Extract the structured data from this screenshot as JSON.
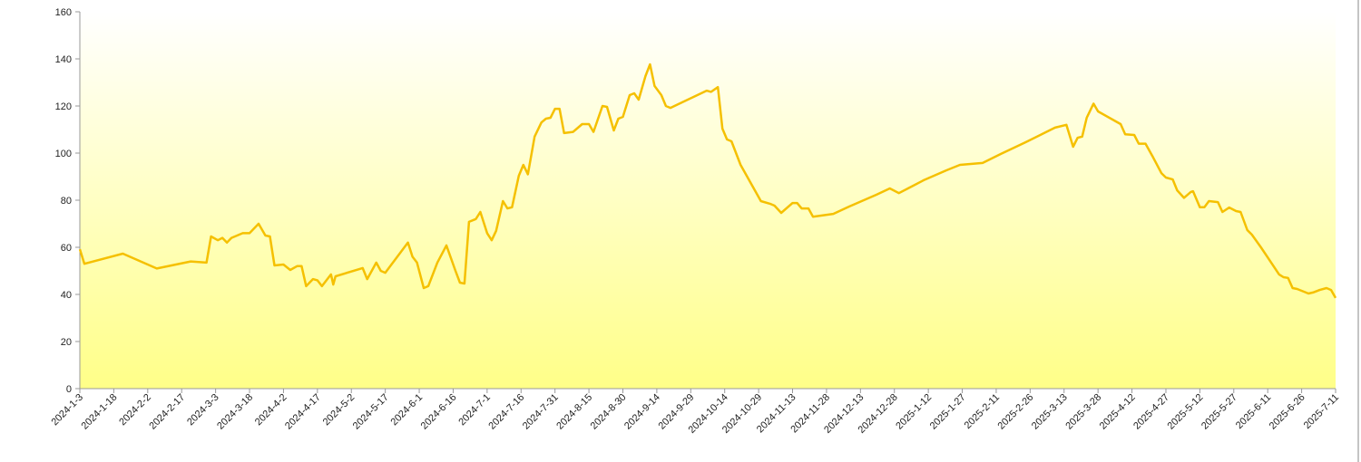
{
  "chart_data": {
    "type": "line",
    "color": "#f5c000",
    "x": [
      "2024-1-3",
      "2024-1-5",
      "2024-1-22",
      "2024-2-6",
      "2024-2-21",
      "2024-2-28",
      "2024-3-1",
      "2024-3-4",
      "2024-3-6",
      "2024-3-8",
      "2024-3-10",
      "2024-3-15",
      "2024-3-18",
      "2024-3-22",
      "2024-3-25",
      "2024-3-27",
      "2024-3-29",
      "2024-4-2",
      "2024-4-5",
      "2024-4-8",
      "2024-4-10",
      "2024-4-12",
      "2024-4-15",
      "2024-4-17",
      "2024-4-19",
      "2024-4-23",
      "2024-4-24",
      "2024-4-25",
      "2024-5-7",
      "2024-5-9",
      "2024-5-13",
      "2024-5-15",
      "2024-5-17",
      "2024-5-27",
      "2024-5-29",
      "2024-5-31",
      "2024-6-3",
      "2024-6-5",
      "2024-6-9",
      "2024-6-13",
      "2024-6-17",
      "2024-6-19",
      "2024-6-21",
      "2024-6-23",
      "2024-6-26",
      "2024-6-28",
      "2024-7-1",
      "2024-7-3",
      "2024-7-5",
      "2024-7-8",
      "2024-7-10",
      "2024-7-12",
      "2024-7-15",
      "2024-7-17",
      "2024-7-19",
      "2024-7-22",
      "2024-7-25",
      "2024-7-27",
      "2024-7-29",
      "2024-7-31",
      "2024-8-2",
      "2024-8-4",
      "2024-8-8",
      "2024-8-12",
      "2024-8-15",
      "2024-8-17",
      "2024-8-21",
      "2024-8-23",
      "2024-8-26",
      "2024-8-28",
      "2024-8-30",
      "2024-9-2",
      "2024-9-4",
      "2024-9-6",
      "2024-9-9",
      "2024-9-11",
      "2024-9-13",
      "2024-9-16",
      "2024-9-18",
      "2024-9-20",
      "2024-10-6",
      "2024-10-8",
      "2024-10-11",
      "2024-10-13",
      "2024-10-15",
      "2024-10-17",
      "2024-10-21",
      "2024-10-30",
      "2024-11-3",
      "2024-11-5",
      "2024-11-8",
      "2024-11-13",
      "2024-11-15",
      "2024-11-17",
      "2024-11-20",
      "2024-11-22",
      "2024-12-1",
      "2024-12-8",
      "2024-12-20",
      "2024-12-26",
      "2024-12-30",
      "2025-1-3",
      "2025-1-10",
      "2025-1-20",
      "2025-1-26",
      "2025-2-5",
      "2025-2-13",
      "2025-2-24",
      "2025-3-9",
      "2025-3-14",
      "2025-3-17",
      "2025-3-19",
      "2025-3-21",
      "2025-3-23",
      "2025-3-26",
      "2025-3-28",
      "2025-4-7",
      "2025-4-9",
      "2025-4-13",
      "2025-4-15",
      "2025-4-18",
      "2025-4-21",
      "2025-4-25",
      "2025-4-27",
      "2025-4-30",
      "2025-5-2",
      "2025-5-5",
      "2025-5-8",
      "2025-5-9",
      "2025-5-12",
      "2025-5-14",
      "2025-5-16",
      "2025-5-20",
      "2025-5-22",
      "2025-5-25",
      "2025-5-28",
      "2025-5-30",
      "2025-6-2",
      "2025-6-4",
      "2025-6-8",
      "2025-6-16",
      "2025-6-18",
      "2025-6-20",
      "2025-6-22",
      "2025-6-24",
      "2025-6-29",
      "2025-7-1",
      "2025-7-4",
      "2025-7-7",
      "2025-7-9",
      "2025-7-11"
    ],
    "values": [
      59.2,
      53,
      57.3,
      51,
      54,
      53.5,
      64.6,
      63,
      64,
      62,
      64,
      66,
      66,
      70,
      65,
      64.6,
      52.3,
      52.7,
      50.4,
      52,
      52,
      43.5,
      46.5,
      46,
      43.5,
      48.5,
      44.2,
      47.7,
      51.2,
      46.5,
      53.5,
      50,
      49.2,
      62,
      56,
      53.5,
      42.7,
      43.5,
      53.5,
      60.8,
      50,
      45,
      44.6,
      70.8,
      72,
      75,
      66,
      63,
      67,
      79.6,
      76.5,
      77,
      90.4,
      95,
      91,
      107,
      113,
      114.6,
      115,
      118.8,
      118.8,
      108.5,
      109,
      112.3,
      112.3,
      109,
      120,
      119.6,
      109.6,
      114.6,
      115.4,
      124.6,
      125.4,
      122.7,
      132.7,
      137.7,
      128.5,
      124.6,
      120,
      119.2,
      126.5,
      126,
      128,
      110.4,
      105.8,
      105,
      95,
      79.6,
      78.5,
      77.7,
      74.6,
      78.8,
      78.8,
      76.5,
      76.5,
      73,
      74.2,
      77.3,
      82.3,
      85,
      83,
      85,
      88.5,
      92.7,
      95,
      95.8,
      99.6,
      104.6,
      110.8,
      112,
      102.7,
      106.5,
      107,
      115,
      121,
      117.7,
      112.3,
      108,
      107.7,
      104,
      104,
      98.8,
      91.5,
      89.6,
      88.8,
      84.2,
      81,
      83.5,
      83.8,
      77,
      77,
      79.6,
      79.2,
      75,
      76.9,
      75.4,
      75,
      67.3,
      65.4,
      60,
      48.5,
      47.3,
      47,
      42.7,
      42.3,
      40.4,
      40.8,
      41.9,
      42.7,
      41.9,
      38.5
    ],
    "xlim": [
      "2024-1-3",
      "2025-7-11"
    ],
    "xticks": [
      "2024-1-3",
      "2024-1-18",
      "2024-2-2",
      "2024-2-17",
      "2024-3-3",
      "2024-3-18",
      "2024-4-2",
      "2024-4-17",
      "2024-5-2",
      "2024-5-17",
      "2024-6-1",
      "2024-6-16",
      "2024-7-1",
      "2024-7-16",
      "2024-7-31",
      "2024-8-15",
      "2024-8-30",
      "2024-9-14",
      "2024-9-29",
      "2024-10-14",
      "2024-10-29",
      "2024-11-13",
      "2024-11-28",
      "2024-12-13",
      "2024-12-28",
      "2025-1-12",
      "2025-1-27",
      "2025-2-11",
      "2025-2-26",
      "2025-3-13",
      "2025-3-28",
      "2025-4-12",
      "2025-4-27",
      "2025-5-12",
      "2025-5-27",
      "2025-6-11",
      "2025-6-26",
      "2025-7-11"
    ],
    "ylim": [
      0,
      160
    ],
    "yticks": [
      0,
      20,
      40,
      60,
      80,
      100,
      120,
      140,
      160
    ]
  }
}
